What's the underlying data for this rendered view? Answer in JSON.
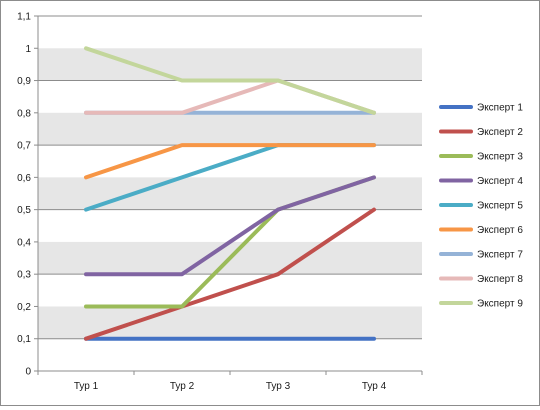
{
  "chart_data": {
    "type": "line",
    "title": "",
    "xlabel": "",
    "ylabel": "",
    "categories": [
      "Тур 1",
      "Тур 2",
      "Тур 3",
      "Тур 4"
    ],
    "ylim": [
      0,
      1.1
    ],
    "yticks": [
      0,
      0.1,
      0.2,
      0.3,
      0.4,
      0.5,
      0.6,
      0.7,
      0.8,
      0.9,
      1,
      1.1
    ],
    "ytick_labels": [
      "0",
      "0,1",
      "0,2",
      "0,3",
      "0,4",
      "0,5",
      "0,6",
      "0,7",
      "0,8",
      "0,9",
      "1",
      "1,1"
    ],
    "grid": "horizontal at 0.1, 0.3, 0.5, 0.7, 0.9, 1.1; alternating gray bands",
    "legend_position": "right",
    "series": [
      {
        "name": "Эксперт 1",
        "color": "#4472C4",
        "values": [
          0.1,
          0.1,
          0.1,
          0.1
        ]
      },
      {
        "name": "Эксперт 2",
        "color": "#C0504D",
        "values": [
          0.1,
          0.2,
          0.3,
          0.5
        ]
      },
      {
        "name": "Эксперт 3",
        "color": "#9BBB59",
        "values": [
          0.2,
          0.2,
          0.5,
          0.6
        ]
      },
      {
        "name": "Эксперт 4",
        "color": "#8064A2",
        "values": [
          0.3,
          0.3,
          0.5,
          0.6
        ]
      },
      {
        "name": "Эксперт 5",
        "color": "#4BACC6",
        "values": [
          0.5,
          0.6,
          0.7,
          0.7
        ]
      },
      {
        "name": "Эксперт 6",
        "color": "#F79646",
        "values": [
          0.6,
          0.7,
          0.7,
          0.7
        ]
      },
      {
        "name": "Эксперт 7",
        "color": "#95B3D7",
        "values": [
          0.8,
          0.8,
          0.8,
          0.8
        ]
      },
      {
        "name": "Эксперт 8",
        "color": "#E6B9B8",
        "values": [
          0.8,
          0.8,
          0.9,
          0.8
        ]
      },
      {
        "name": "Эксперт 9",
        "color": "#C3D69B",
        "values": [
          1.0,
          0.9,
          0.9,
          0.8
        ]
      }
    ]
  }
}
